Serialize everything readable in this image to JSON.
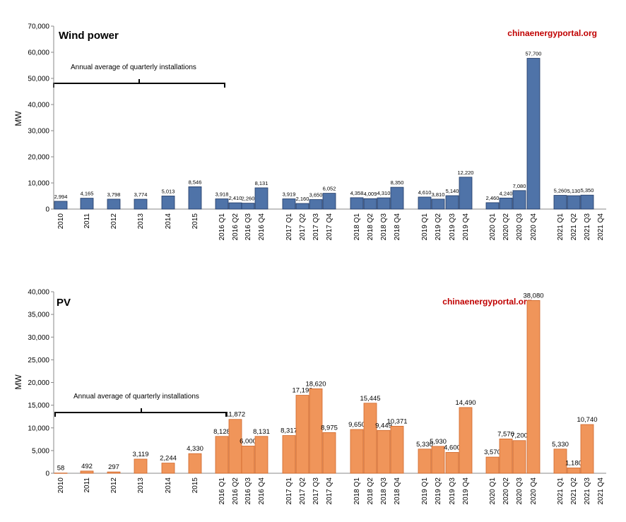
{
  "colors": {
    "wind": "#4f73a8",
    "wind_edge": "#1f3864",
    "pv": "#f0955a",
    "pv_edge": "#d0672a",
    "brand": "#c00000"
  },
  "chart_data": [
    {
      "type": "bar",
      "title": "Wind power",
      "brand": "chinaenergyportal.org",
      "ylabel": "MW",
      "annotation": "Annual average of quarterly installations",
      "ylim": [
        0,
        70000
      ],
      "yticks": [
        0,
        10000,
        20000,
        30000,
        40000,
        50000,
        60000,
        70000
      ],
      "ytick_labels": [
        "0",
        "10,000",
        "20,000",
        "30,000",
        "40,000",
        "50,000",
        "60,000",
        "70,000"
      ],
      "categories": [
        "2010",
        "2011",
        "2012",
        "2013",
        "2014",
        "2015",
        "2016 Q1",
        "2016 Q2",
        "2016 Q3",
        "2016 Q4",
        "2017 Q1",
        "2017 Q2",
        "2017 Q3",
        "2017 Q4",
        "2018 Q1",
        "2018 Q2",
        "2018 Q3",
        "2018 Q4",
        "2019 Q1",
        "2019 Q2",
        "2019 Q3",
        "2019 Q4",
        "2020 Q1",
        "2020 Q2",
        "2020 Q3",
        "2020 Q4",
        "2021 Q1",
        "2021 Q2",
        "2021 Q3",
        "2021 Q4"
      ],
      "values": [
        2994,
        4165,
        3798,
        3774,
        5013,
        8546,
        3918,
        2410,
        2260,
        8131,
        3919,
        2160,
        3650,
        6052,
        4358,
        4009,
        4310,
        8350,
        4610,
        3810,
        5140,
        12220,
        2460,
        4240,
        7080,
        57700,
        5260,
        5130,
        5350,
        null
      ],
      "data_labels": [
        "2,994",
        "4,165",
        "3,798",
        "3,774",
        "5,013",
        "8,546",
        "3,918",
        "2,410",
        "2,260",
        "8,131",
        "3,919",
        "2,160",
        "3,650",
        "6,052",
        "4,358",
        "4,009",
        "4,310",
        "8,350",
        "4,610",
        "3,810",
        "5,140",
        "12,220",
        "2,460",
        "4,240",
        "7,080",
        "57,700",
        "5,260",
        "5,130",
        "5,350",
        ""
      ]
    },
    {
      "type": "bar",
      "title": "PV",
      "brand": "chinaenergyportal.org",
      "ylabel": "MW",
      "annotation": "Annual average of quarterly installations",
      "ylim": [
        0,
        40000
      ],
      "yticks": [
        0,
        5000,
        10000,
        15000,
        20000,
        25000,
        30000,
        35000,
        40000
      ],
      "ytick_labels": [
        "0",
        "5,000",
        "10,000",
        "15,000",
        "20,000",
        "25,000",
        "30,000",
        "35,000",
        "40,000"
      ],
      "categories": [
        "2010",
        "2011",
        "2012",
        "2013",
        "2014",
        "2015",
        "2016 Q1",
        "2016 Q2",
        "2016 Q3",
        "2016 Q4",
        "2017 Q1",
        "2017 Q2",
        "2017 Q3",
        "2017 Q4",
        "2018 Q1",
        "2018 Q2",
        "2018 Q3",
        "2018 Q4",
        "2019 Q1",
        "2019 Q2",
        "2019 Q3",
        "2019 Q4",
        "2020 Q1",
        "2020 Q2",
        "2020 Q3",
        "2020 Q4",
        "2021 Q1",
        "2021 Q2",
        "2021 Q3",
        "2021 Q4"
      ],
      "values": [
        58,
        492,
        297,
        3119,
        2244,
        4330,
        8128,
        11872,
        6000,
        8131,
        8317,
        17190,
        18620,
        8975,
        9650,
        15445,
        9449,
        10371,
        5330,
        5930,
        4600,
        14490,
        3570,
        7570,
        7200,
        38080,
        5330,
        1180,
        10740,
        null
      ],
      "data_labels": [
        "58",
        "492",
        "297",
        "3,119",
        "2,244",
        "4,330",
        "8,128",
        "11,872",
        "6,000",
        "8,131",
        "8,317",
        "17,190",
        "18,620",
        "8,975",
        "9,650",
        "15,445",
        "9,449",
        "10,371",
        "5,330",
        "5,930",
        "4,600",
        "14,490",
        "3,570",
        "7,570",
        "7,200",
        "38,080",
        "5,330",
        "1,180",
        "10,740",
        ""
      ]
    }
  ]
}
